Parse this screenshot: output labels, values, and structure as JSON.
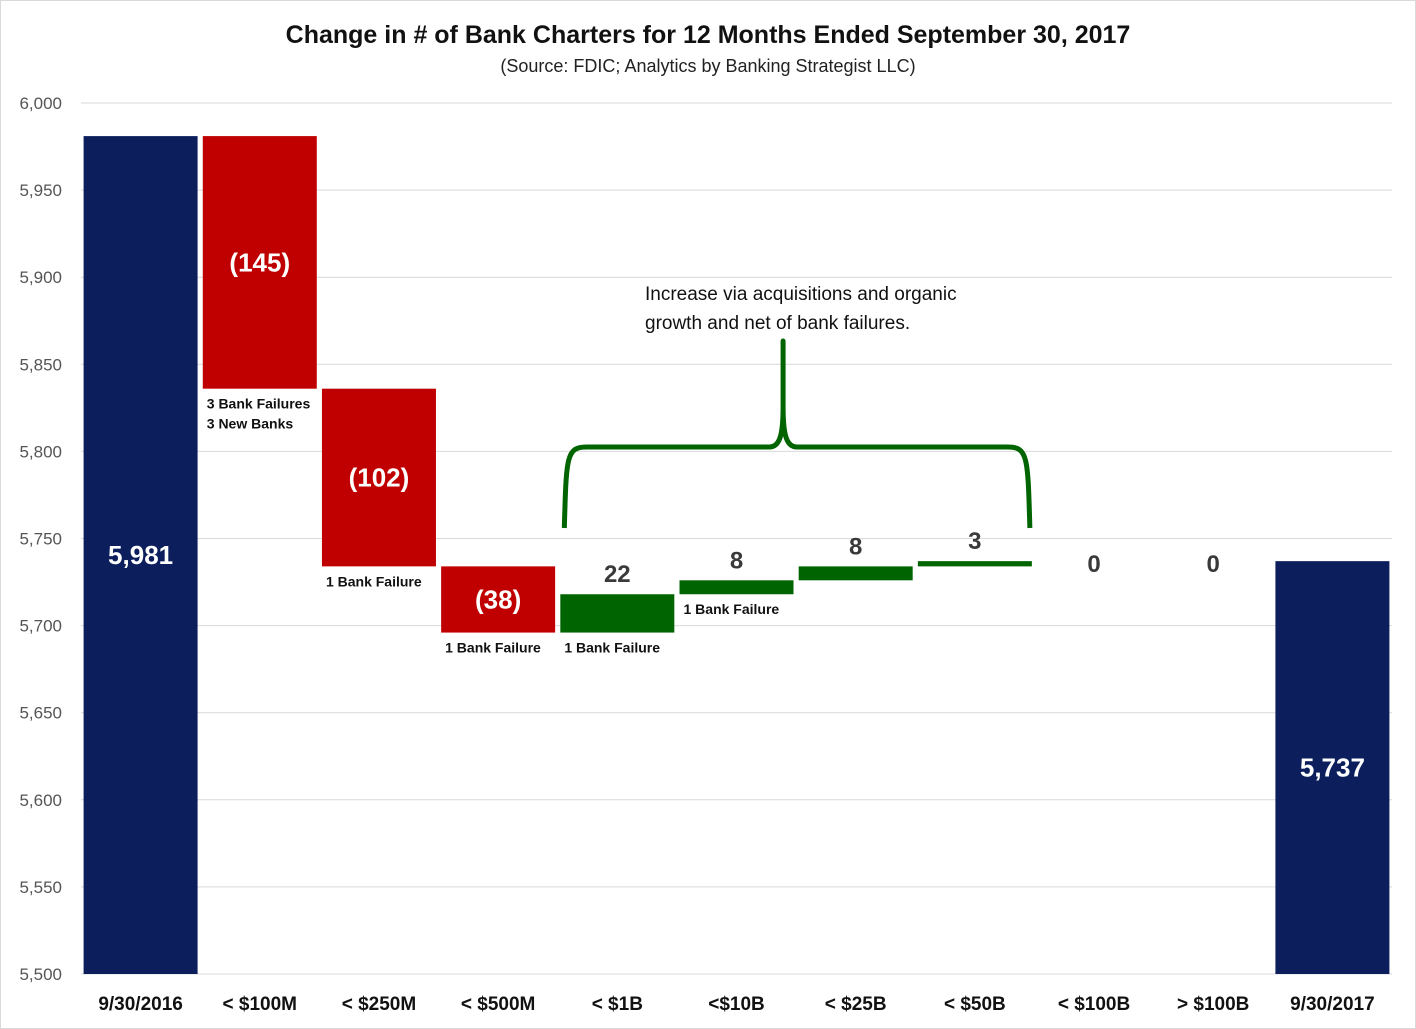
{
  "chart_data": {
    "type": "bar",
    "subtype": "waterfall",
    "title": "Change in # of Bank Charters for 12 Months Ended September 30, 2017",
    "subtitle": "(Source: FDIC; Analytics by Banking Strategist LLC)",
    "xlabel": "",
    "ylabel": "",
    "ylim": [
      5500,
      6000
    ],
    "y_ticks": [
      "5,500",
      "5,550",
      "5,600",
      "5,650",
      "5,700",
      "5,750",
      "5,800",
      "5,850",
      "5,900",
      "5,950",
      "6,000"
    ],
    "grid": true,
    "categories": [
      "9/30/2016",
      "< $100M",
      "< $250M",
      "< $500M",
      "< $1B",
      "<$10B",
      "< $25B",
      "< $50B",
      "< $100B",
      "> $100B",
      "9/30/2017"
    ],
    "values": [
      5981,
      -145,
      -102,
      -38,
      22,
      8,
      8,
      3,
      0,
      0,
      5737
    ],
    "data_labels": [
      "5,981",
      "(145)",
      "(102)",
      "(38)",
      "22",
      "8",
      "8",
      "3",
      "0",
      "0",
      "5,737"
    ],
    "bar_types": [
      "total",
      "decrease",
      "decrease",
      "decrease",
      "increase",
      "increase",
      "increase",
      "increase",
      "increase",
      "increase",
      "total"
    ],
    "notes": [
      {
        "category_index": 1,
        "lines": [
          "3 Bank Failures",
          "3 New Banks"
        ]
      },
      {
        "category_index": 2,
        "lines": [
          "1 Bank Failure"
        ]
      },
      {
        "category_index": 3,
        "lines": [
          "1 Bank Failure"
        ]
      },
      {
        "category_index": 4,
        "lines": [
          "1 Bank Failure"
        ]
      },
      {
        "category_index": 5,
        "lines": [
          "1 Bank Failure"
        ]
      }
    ],
    "annotation": {
      "lines": [
        "Increase via acquisitions and organic",
        "growth and net of bank failures."
      ],
      "bracket_from_index": 4,
      "bracket_to_index": 7
    },
    "colors": {
      "total": "#0c1f5c",
      "decrease": "#c00000",
      "increase": "#006400",
      "grid": "#d9d9d9",
      "bracket": "#006400",
      "increase_label": "#3a3a3a"
    }
  }
}
